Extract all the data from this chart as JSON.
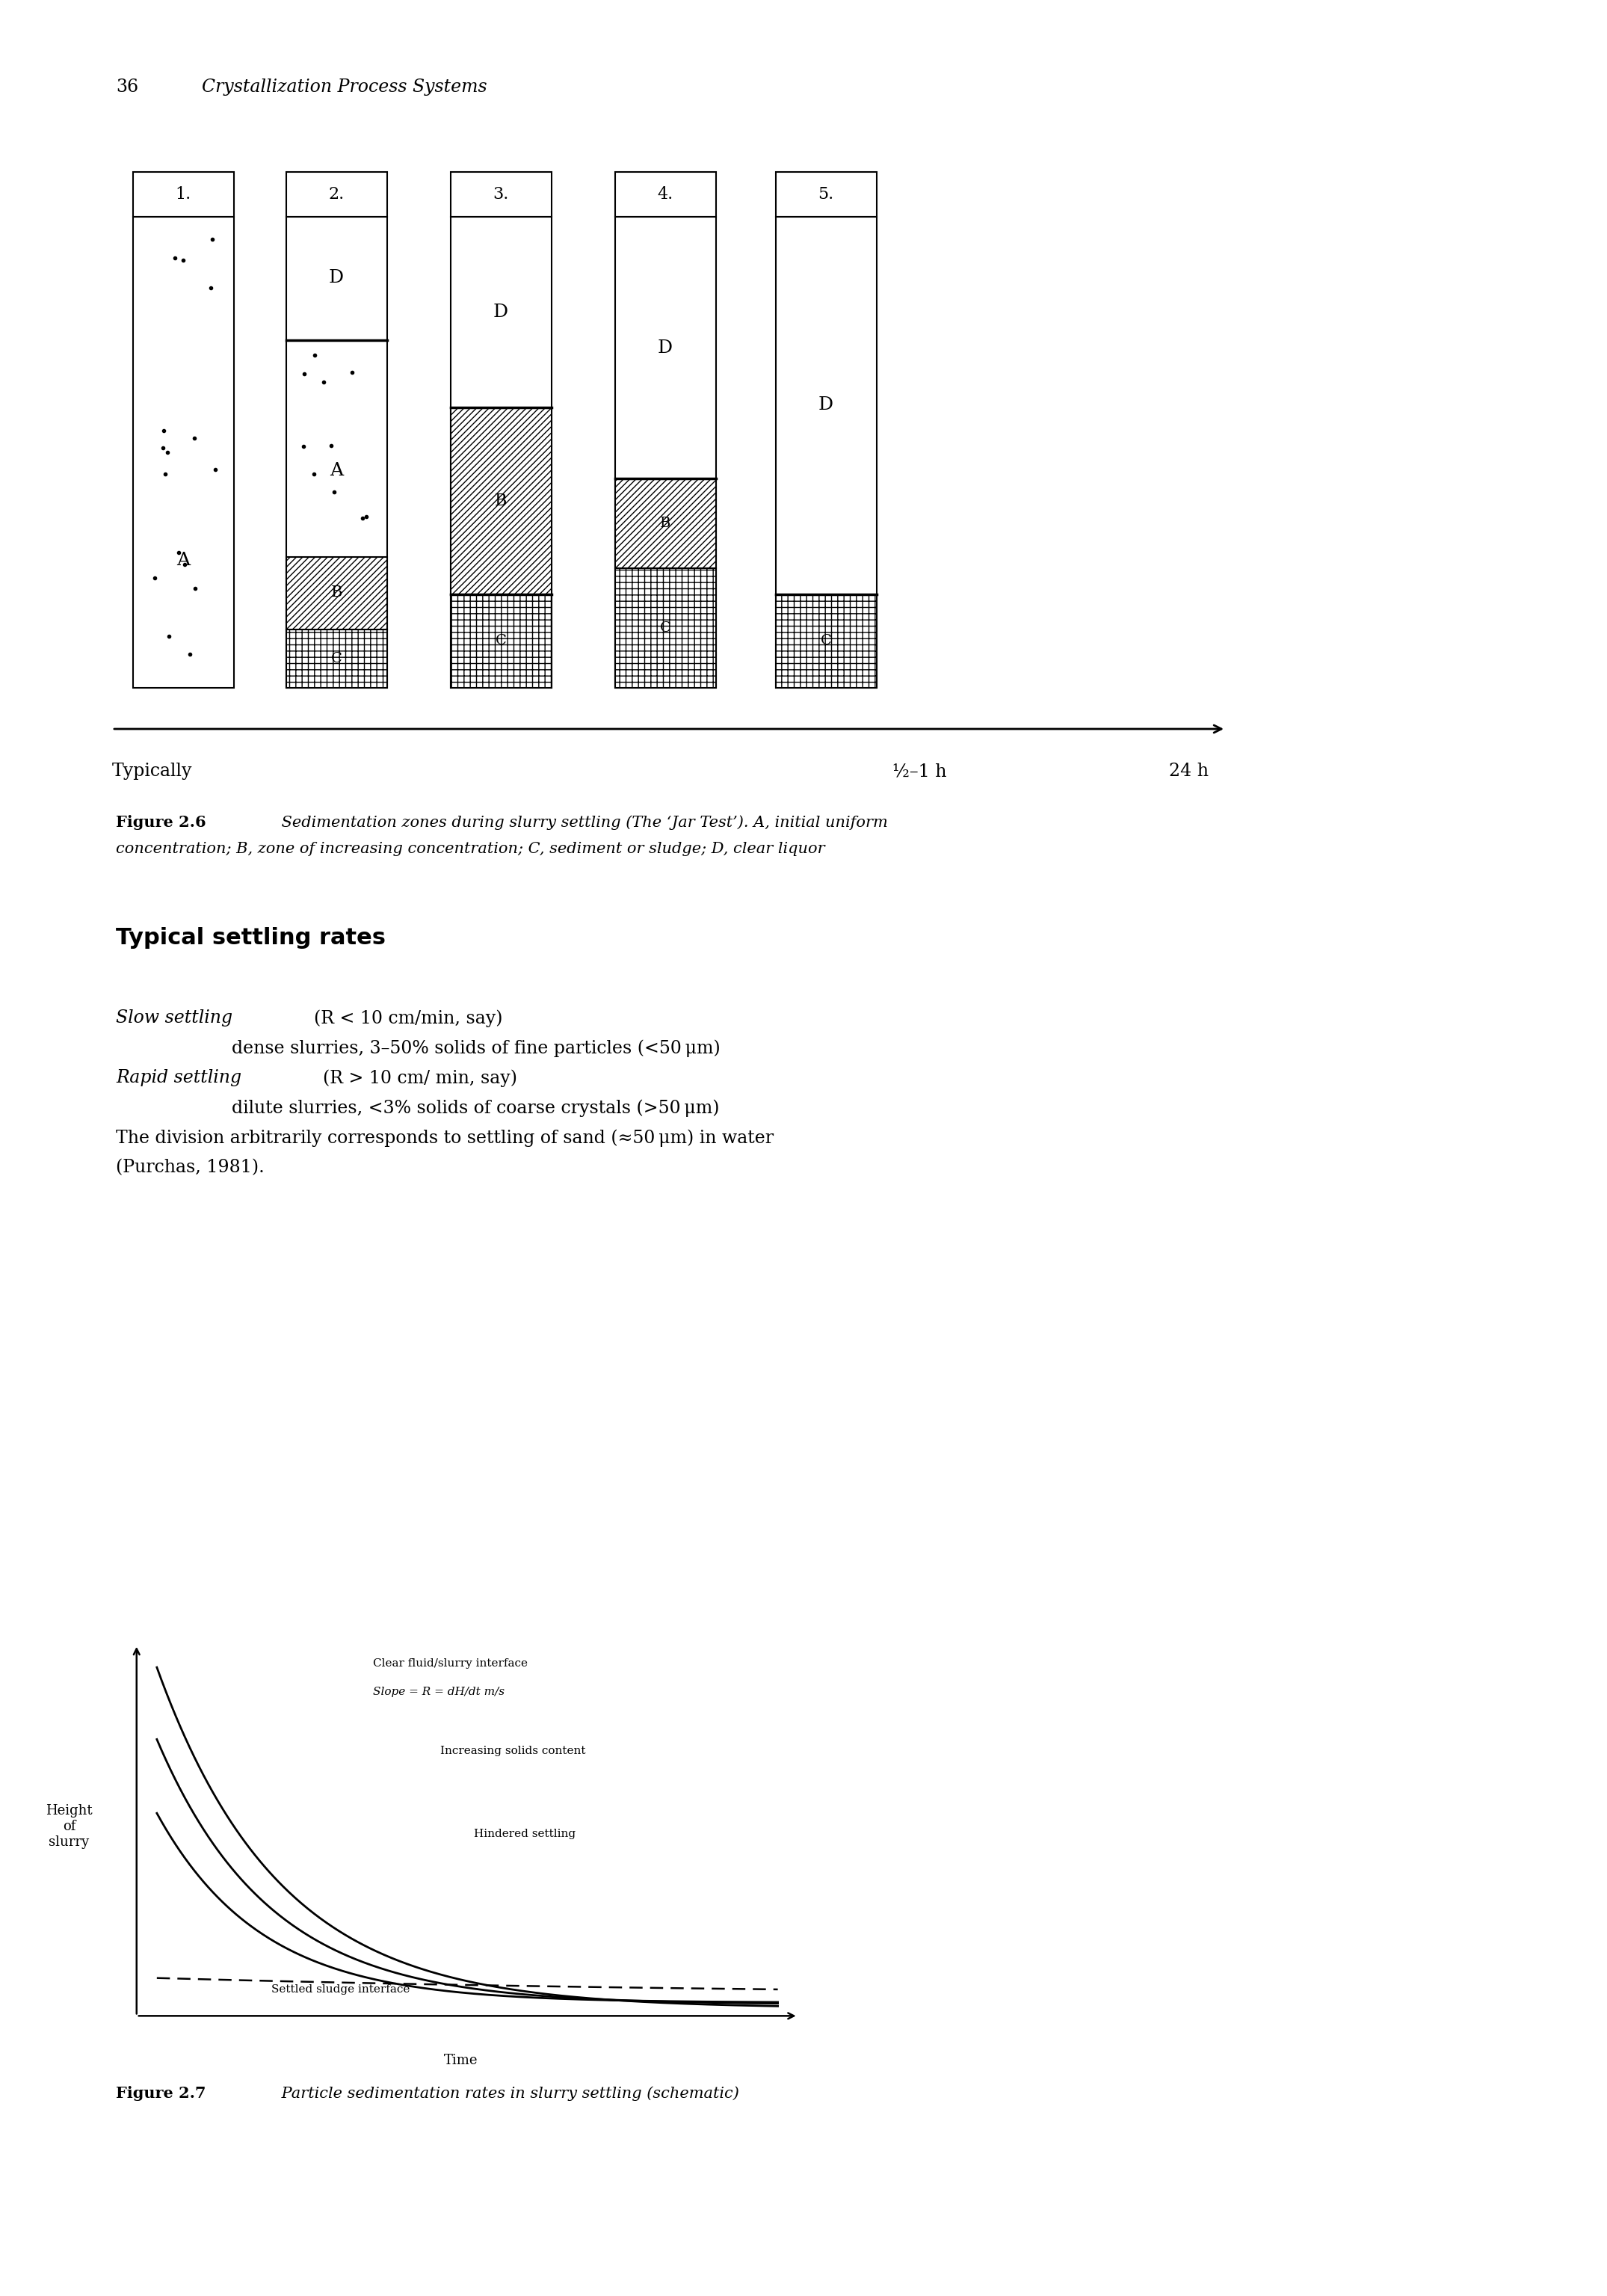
{
  "page_header_num": "36",
  "page_header_text": "Crystallization Process Systems",
  "jar_labels": [
    "1.",
    "2.",
    "3.",
    "4.",
    "5."
  ],
  "time_labels": [
    "Typically",
    "½–1 h",
    "24 h"
  ],
  "fig26_bold": "Figure 2.6",
  "fig26_italic": " Sedimentation zones during slurry settling (The ‘Jar Test’). A, initial uniform",
  "fig26_line2": "concentration; B, zone of increasing concentration; C, sediment or sludge; D, clear liquor",
  "section_title": "Typical settling rates",
  "slow_italic": "Slow settling ",
  "slow_rest": "(R < 10 cm/min, say)",
  "slow_indent": "dense slurries, 3–50% solids of fine particles (<50 μm)",
  "rapid_italic": "Rapid settling ",
  "rapid_rest": "(R > 10 cm/ min, say)",
  "rapid_indent": "dilute slurries, <3% solids of coarse crystals (>50 μm)",
  "division_line1": "The division arbitrarily corresponds to settling of sand (≈50 μm) in water",
  "division_line2": "(Purchas, 1981).",
  "graph_label_y": "Height\nof\nslurry",
  "graph_label_x": "Time",
  "curve1_label1": "Clear fluid/slurry interface",
  "curve1_label2": "Slope = R = dH/dt m/s",
  "curve2_label": "Increasing solids content",
  "curve3_label": "Hindered settling",
  "curve4_label": "Settled sludge interface",
  "fig27_bold": "Figure 2.7",
  "fig27_italic": " Particle sedimentation rates in slurry settling (schematic)",
  "bg": "#ffffff"
}
